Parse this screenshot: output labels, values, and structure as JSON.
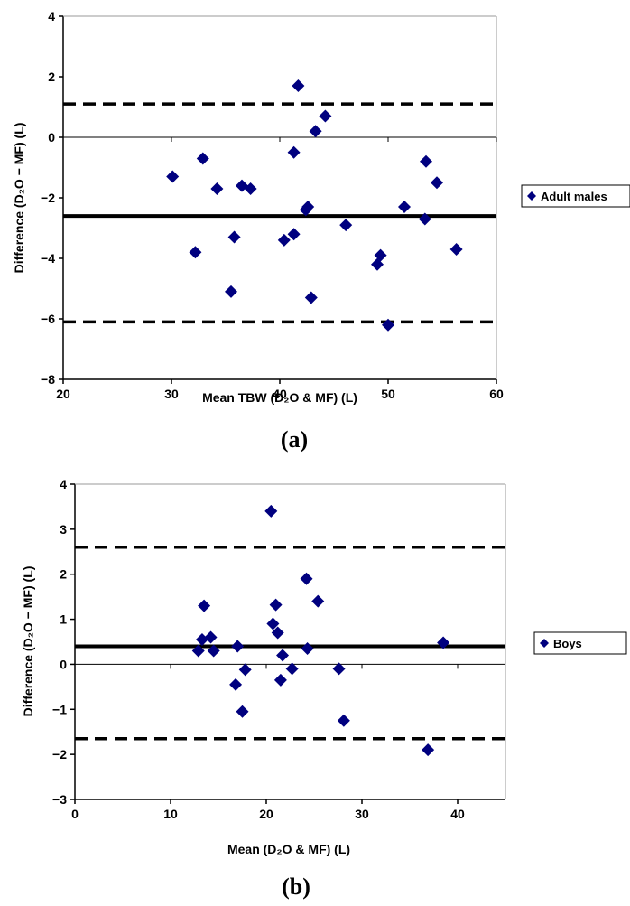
{
  "chart_data": [
    {
      "type": "scatter",
      "panel_label": "(a)",
      "xlabel": "Mean TBW (D₂O & MF) (L)",
      "ylabel": "Difference (D₂O − MF) (L)",
      "xlim": [
        20,
        60
      ],
      "ylim": [
        -8,
        4
      ],
      "x_ticks": [
        20,
        30,
        40,
        50,
        60
      ],
      "y_ticks": [
        -8,
        -6,
        -4,
        -2,
        0,
        2,
        4
      ],
      "x_tick_labels": [
        "20",
        "30",
        "40",
        "50",
        "60"
      ],
      "y_tick_labels": [
        "−8",
        "−6",
        "−4",
        "−2",
        "0",
        "2",
        "4"
      ],
      "grid": false,
      "legend_position": "right",
      "mean_line": -2.6,
      "limits_of_agreement": [
        1.1,
        -6.1
      ],
      "series": [
        {
          "name": "Adult males",
          "color": "#00007f",
          "marker": "diamond",
          "points": [
            [
              30.1,
              -1.3
            ],
            [
              32.2,
              -3.8
            ],
            [
              32.9,
              -0.7
            ],
            [
              34.2,
              -1.7
            ],
            [
              35.5,
              -5.1
            ],
            [
              35.8,
              -3.3
            ],
            [
              36.5,
              -1.6
            ],
            [
              37.3,
              -1.7
            ],
            [
              40.4,
              -3.4
            ],
            [
              41.3,
              -3.2
            ],
            [
              41.3,
              -0.5
            ],
            [
              41.7,
              1.7
            ],
            [
              42.4,
              -2.4
            ],
            [
              42.6,
              -2.3
            ],
            [
              42.9,
              -5.3
            ],
            [
              43.3,
              0.2
            ],
            [
              44.2,
              0.7
            ],
            [
              46.1,
              -2.9
            ],
            [
              49.0,
              -4.2
            ],
            [
              49.3,
              -3.9
            ],
            [
              50.0,
              -6.2
            ],
            [
              51.5,
              -2.3
            ],
            [
              53.4,
              -2.7
            ],
            [
              53.5,
              -0.8
            ],
            [
              54.5,
              -1.5
            ],
            [
              56.3,
              -3.7
            ]
          ]
        }
      ]
    },
    {
      "type": "scatter",
      "panel_label": "(b)",
      "xlabel": "Mean (D₂O & MF) (L)",
      "ylabel": "Difference (D₂O − MF) (L)",
      "xlim": [
        0,
        45
      ],
      "ylim": [
        -3,
        4
      ],
      "x_ticks": [
        0,
        10,
        20,
        30,
        40
      ],
      "y_ticks": [
        -3,
        -2,
        -1,
        0,
        1,
        2,
        3,
        4
      ],
      "x_tick_labels": [
        "0",
        "10",
        "20",
        "30",
        "40"
      ],
      "y_tick_labels": [
        "−3",
        "−2",
        "−1",
        "0",
        "1",
        "2",
        "3",
        "4"
      ],
      "grid": false,
      "legend_position": "right",
      "mean_line": 0.4,
      "limits_of_agreement": [
        2.6,
        -1.65
      ],
      "series": [
        {
          "name": "Boys",
          "color": "#00007f",
          "marker": "diamond",
          "points": [
            [
              12.9,
              0.3
            ],
            [
              13.3,
              0.55
            ],
            [
              13.5,
              1.3
            ],
            [
              14.2,
              0.6
            ],
            [
              14.5,
              0.3
            ],
            [
              16.8,
              -0.45
            ],
            [
              17.0,
              0.4
            ],
            [
              17.5,
              -1.05
            ],
            [
              17.8,
              -0.12
            ],
            [
              20.5,
              3.4
            ],
            [
              20.7,
              0.9
            ],
            [
              21.0,
              1.32
            ],
            [
              21.2,
              0.7
            ],
            [
              21.5,
              -0.35
            ],
            [
              21.7,
              0.2
            ],
            [
              22.7,
              -0.1
            ],
            [
              24.2,
              1.9
            ],
            [
              24.3,
              0.35
            ],
            [
              25.4,
              1.4
            ],
            [
              27.6,
              -0.1
            ],
            [
              28.1,
              -1.25
            ],
            [
              36.9,
              -1.9
            ],
            [
              38.5,
              0.48
            ]
          ]
        }
      ]
    }
  ]
}
